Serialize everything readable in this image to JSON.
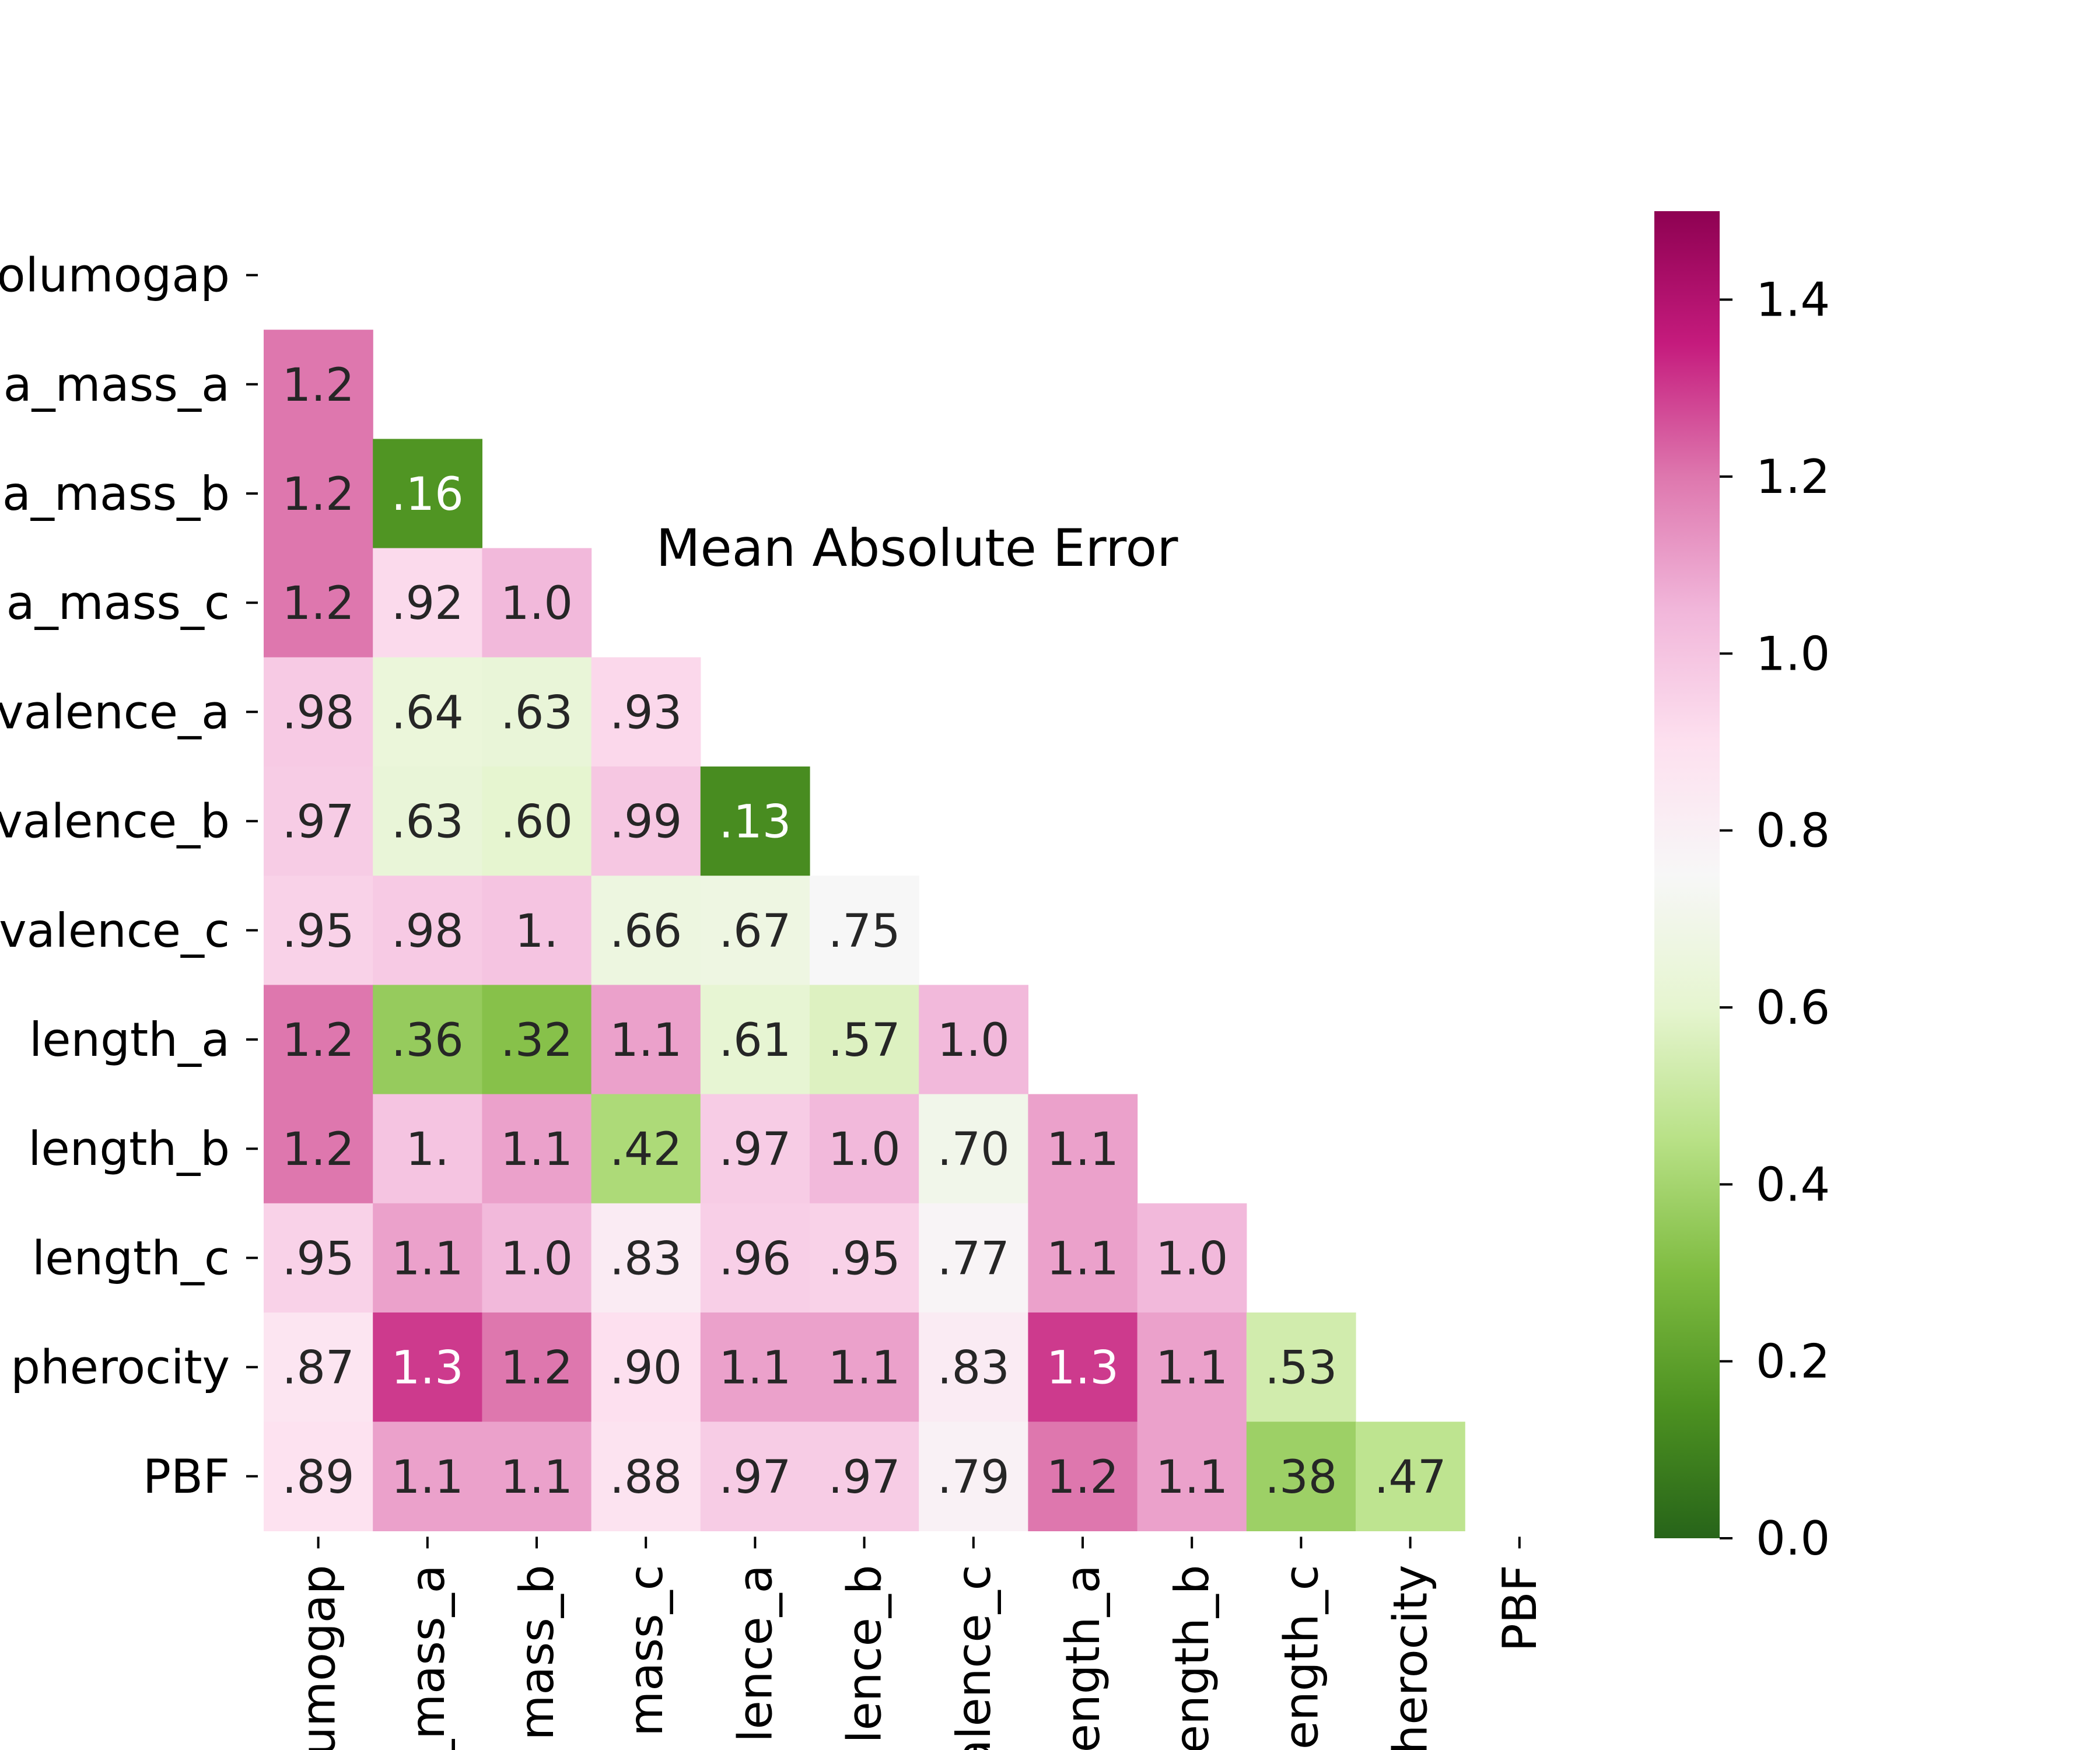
{
  "chart_data": {
    "type": "heatmap",
    "title": "Mean Absolute Error",
    "rows": [
      "olumogap",
      "a_mass_a",
      "a_mass_b",
      "a_mass_c",
      "valence_a",
      "valence_b",
      "valence_c",
      "length_a",
      "length_b",
      "length_c",
      "pherocity",
      "PBF"
    ],
    "columns": [
      "umogap",
      "_mass_a",
      "mass_b",
      "mass_c",
      "lence_a",
      "lence_b",
      "alence_c",
      "ength_a",
      "ength_b",
      "ength_c",
      "herocity",
      "PBF"
    ],
    "values": [
      [
        null,
        null,
        null,
        null,
        null,
        null,
        null,
        null,
        null,
        null,
        null,
        null
      ],
      [
        1.2,
        null,
        null,
        null,
        null,
        null,
        null,
        null,
        null,
        null,
        null,
        null
      ],
      [
        1.2,
        0.16,
        null,
        null,
        null,
        null,
        null,
        null,
        null,
        null,
        null,
        null
      ],
      [
        1.2,
        0.92,
        1.04,
        null,
        null,
        null,
        null,
        null,
        null,
        null,
        null,
        null
      ],
      [
        0.98,
        0.64,
        0.63,
        0.93,
        null,
        null,
        null,
        null,
        null,
        null,
        null,
        null
      ],
      [
        0.97,
        0.63,
        0.6,
        0.99,
        0.13,
        null,
        null,
        null,
        null,
        null,
        null,
        null
      ],
      [
        0.95,
        0.98,
        1.0,
        0.66,
        0.67,
        0.75,
        null,
        null,
        null,
        null,
        null,
        null
      ],
      [
        1.2,
        0.36,
        0.32,
        1.1,
        0.61,
        0.57,
        1.04,
        null,
        null,
        null,
        null,
        null
      ],
      [
        1.2,
        1.0,
        1.1,
        0.42,
        0.97,
        1.04,
        0.7,
        1.1,
        null,
        null,
        null,
        null
      ],
      [
        0.95,
        1.1,
        1.04,
        0.83,
        0.96,
        0.95,
        0.77,
        1.1,
        1.04,
        null,
        null,
        null
      ],
      [
        0.87,
        1.3,
        1.2,
        0.9,
        1.1,
        1.1,
        0.83,
        1.3,
        1.1,
        0.53,
        null,
        null
      ],
      [
        0.89,
        1.1,
        1.1,
        0.88,
        0.97,
        0.97,
        0.79,
        1.2,
        1.1,
        0.38,
        0.47,
        null
      ]
    ],
    "labels": [
      [
        null,
        null,
        null,
        null,
        null,
        null,
        null,
        null,
        null,
        null,
        null,
        null
      ],
      [
        "1.2",
        null,
        null,
        null,
        null,
        null,
        null,
        null,
        null,
        null,
        null,
        null
      ],
      [
        "1.2",
        ".16",
        null,
        null,
        null,
        null,
        null,
        null,
        null,
        null,
        null,
        null
      ],
      [
        "1.2",
        ".92",
        "1.0",
        null,
        null,
        null,
        null,
        null,
        null,
        null,
        null,
        null
      ],
      [
        ".98",
        ".64",
        ".63",
        ".93",
        null,
        null,
        null,
        null,
        null,
        null,
        null,
        null
      ],
      [
        ".97",
        ".63",
        ".60",
        ".99",
        ".13",
        null,
        null,
        null,
        null,
        null,
        null,
        null
      ],
      [
        ".95",
        ".98",
        "1.",
        ".66",
        ".67",
        ".75",
        null,
        null,
        null,
        null,
        null,
        null
      ],
      [
        "1.2",
        ".36",
        ".32",
        "1.1",
        ".61",
        ".57",
        "1.0",
        null,
        null,
        null,
        null,
        null
      ],
      [
        "1.2",
        "1.",
        "1.1",
        ".42",
        ".97",
        "1.0",
        ".70",
        "1.1",
        null,
        null,
        null,
        null
      ],
      [
        ".95",
        "1.1",
        "1.0",
        ".83",
        ".96",
        ".95",
        ".77",
        "1.1",
        "1.0",
        null,
        null,
        null
      ],
      [
        ".87",
        "1.3",
        "1.2",
        ".90",
        "1.1",
        "1.1",
        ".83",
        "1.3",
        "1.1",
        ".53",
        null,
        null
      ],
      [
        ".89",
        "1.1",
        "1.1",
        ".88",
        ".97",
        ".97",
        ".79",
        "1.2",
        "1.1",
        ".38",
        ".47",
        null
      ]
    ],
    "colorbar": {
      "min": 0.0,
      "max": 1.5,
      "ticks": [
        "0.0",
        "0.2",
        "0.4",
        "0.6",
        "0.8",
        "1.0",
        "1.2",
        "1.4"
      ],
      "colormap": "PiYG reversed",
      "colors": [
        "#276419",
        "#4d9221",
        "#7fbc41",
        "#b8e186",
        "#e6f5d0",
        "#f7f7f7",
        "#fde0ef",
        "#f1b6da",
        "#de77ae",
        "#c51b7d",
        "#8e0152"
      ]
    },
    "grid": false
  }
}
